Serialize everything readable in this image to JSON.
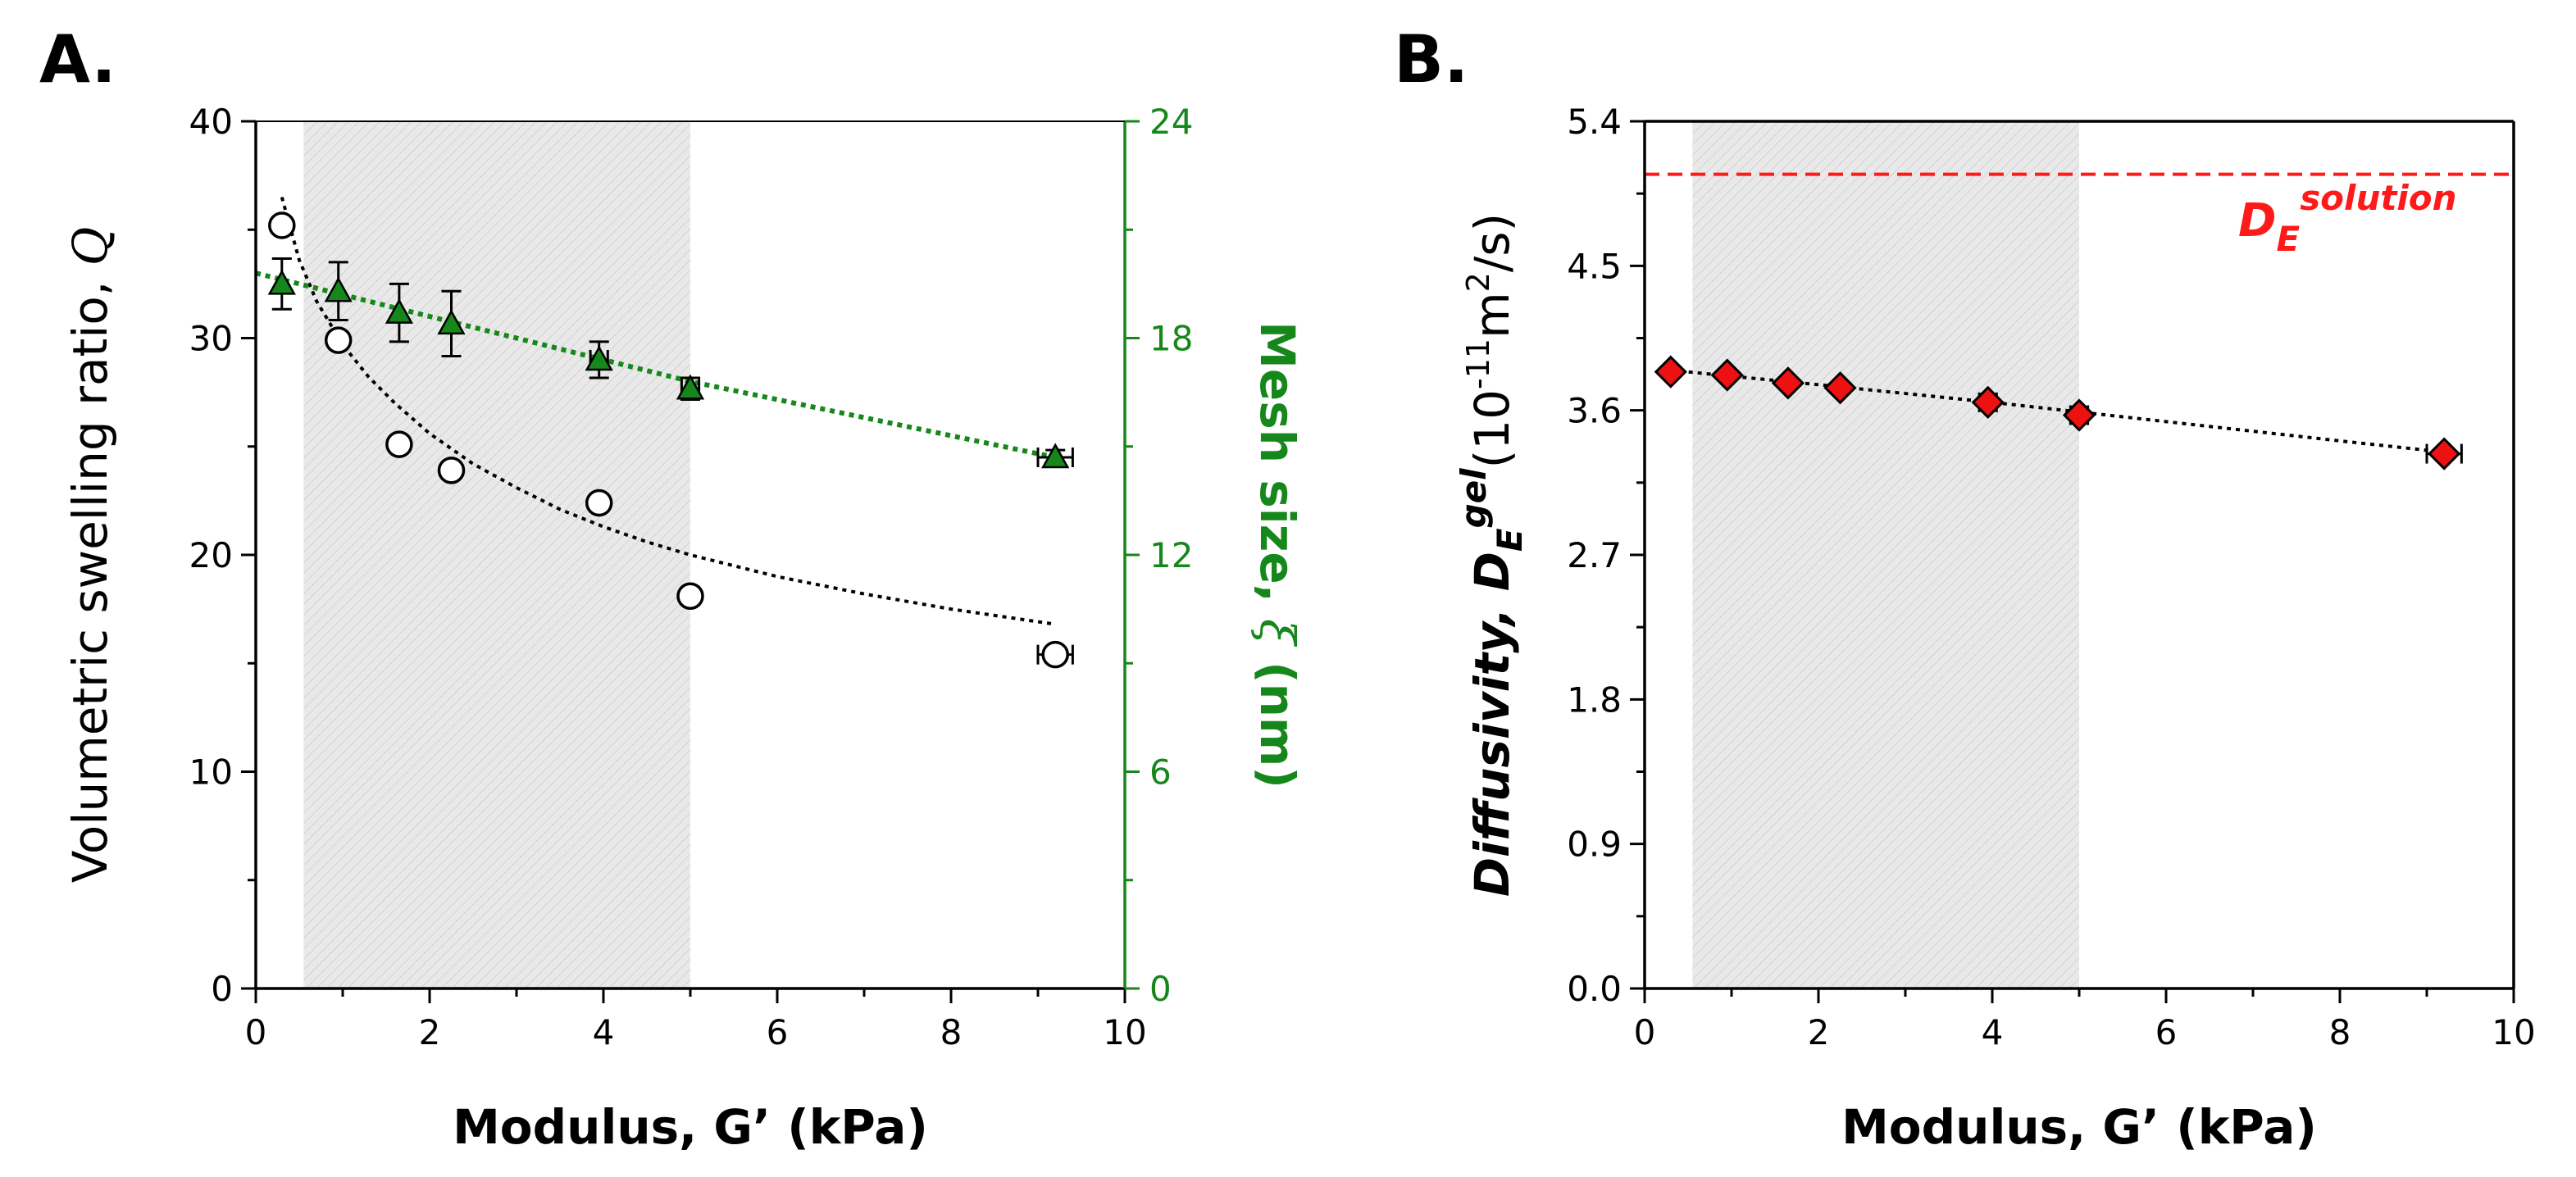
{
  "panels": {
    "a": {
      "label": "A."
    },
    "b": {
      "label": "B."
    }
  },
  "colors": {
    "axis": "#000000",
    "green": "#16871a",
    "red_marker": "#ee1111",
    "red_line": "#ff1a1a",
    "shade": "#e8e8e8"
  },
  "chart_data": [
    {
      "id": "A",
      "type": "scatter",
      "title": "",
      "xlabel": "Modulus, G’ (kPa)",
      "ylabel_prefix": "Volumetric swelling ratio, ",
      "ylabel_symbol": "Q",
      "y2label_prefix": "Mesh size, ",
      "y2label_symbol": "ξ",
      "y2label_suffix": " (nm)",
      "xlim": [
        0,
        10
      ],
      "ylim": [
        0,
        40
      ],
      "y2lim": [
        0,
        24
      ],
      "x_ticks": [
        "0",
        "2",
        "4",
        "6",
        "8",
        "10"
      ],
      "y_ticks": [
        "0",
        "10",
        "20",
        "30",
        "40"
      ],
      "y2_ticks": [
        "0",
        "6",
        "12",
        "18",
        "24"
      ],
      "shaded_region": [
        0.55,
        5.0
      ],
      "series": [
        {
          "name": "Volumetric swelling ratio Q",
          "axis": "left",
          "marker": "open-circle",
          "x": [
            0.3,
            0.95,
            1.65,
            2.25,
            3.95,
            5.0,
            9.2
          ],
          "y": [
            35.2,
            29.9,
            25.1,
            23.9,
            22.4,
            18.1,
            15.4
          ],
          "xerr": [
            0,
            0,
            0,
            0,
            0.1,
            0.1,
            0.2
          ],
          "yerr": [
            0,
            0,
            0,
            0,
            0,
            0,
            0
          ]
        },
        {
          "name": "Mesh size ξ",
          "axis": "right",
          "marker": "filled-triangle",
          "x": [
            0.3,
            0.95,
            1.65,
            2.25,
            3.95,
            5.0,
            9.2
          ],
          "y": [
            19.5,
            19.3,
            18.7,
            18.4,
            17.4,
            16.6,
            14.7
          ],
          "xerr": [
            0,
            0,
            0,
            0,
            0.1,
            0.1,
            0.2
          ],
          "yerr": [
            0.7,
            0.8,
            0.8,
            0.9,
            0.5,
            0.3,
            0.2
          ]
        }
      ],
      "fits": [
        {
          "name": "Q fit",
          "axis": "left",
          "style": "dotted",
          "color": "black",
          "x": [
            0.3,
            0.5,
            0.7,
            1.0,
            1.3,
            1.6,
            2.0,
            2.5,
            3.0,
            3.5,
            4.0,
            4.5,
            5.0,
            6.0,
            7.0,
            8.0,
            9.2
          ],
          "y": [
            36.5,
            33.6,
            31.7,
            29.7,
            28.2,
            27.0,
            25.6,
            24.2,
            23.1,
            22.1,
            21.3,
            20.6,
            20.0,
            19.0,
            18.2,
            17.5,
            16.8
          ]
        },
        {
          "name": "ξ fit",
          "axis": "right",
          "style": "dotted",
          "color": "green",
          "x": [
            0,
            1,
            2,
            3,
            4,
            5,
            6,
            7,
            8,
            9.2
          ],
          "y": [
            19.8,
            19.2,
            18.6,
            18.0,
            17.4,
            16.8,
            16.3,
            15.8,
            15.3,
            14.7
          ]
        }
      ]
    },
    {
      "id": "B",
      "type": "scatter",
      "title": "",
      "xlabel": "Modulus, G’ (kPa)",
      "ylabel_prefix": "Diffusivity, ",
      "ylabel_D": "D",
      "ylabel_sub": "E",
      "ylabel_sup": "gel",
      "ylabel_units": "(10",
      "ylabel_units_exp": "-11",
      "ylabel_units_rest": "m",
      "ylabel_units_exp2": "2",
      "ylabel_units_end": "/s)",
      "xlim": [
        0,
        10
      ],
      "ylim": [
        0,
        5.4
      ],
      "x_ticks": [
        "0",
        "2",
        "4",
        "6",
        "8",
        "10"
      ],
      "y_ticks": [
        "0.0",
        "0.9",
        "1.8",
        "2.7",
        "3.6",
        "4.5",
        "5.4"
      ],
      "shaded_region": [
        0.55,
        5.0
      ],
      "reference_line": {
        "value": 5.07,
        "label_D": "D",
        "label_sub": "E",
        "label_sup": "solution"
      },
      "series": [
        {
          "name": "D_E^gel",
          "marker": "filled-diamond",
          "x": [
            0.3,
            0.95,
            1.65,
            2.25,
            3.95,
            5.0,
            9.2
          ],
          "y": [
            3.84,
            3.82,
            3.77,
            3.74,
            3.65,
            3.57,
            3.33
          ],
          "xerr": [
            0,
            0,
            0,
            0,
            0.1,
            0.1,
            0.2
          ]
        }
      ],
      "fits": [
        {
          "name": "D fit",
          "style": "dotted",
          "color": "black",
          "x": [
            0.3,
            2.0,
            4.0,
            6.0,
            8.0,
            9.2
          ],
          "y": [
            3.85,
            3.76,
            3.65,
            3.53,
            3.41,
            3.34
          ]
        }
      ]
    }
  ]
}
